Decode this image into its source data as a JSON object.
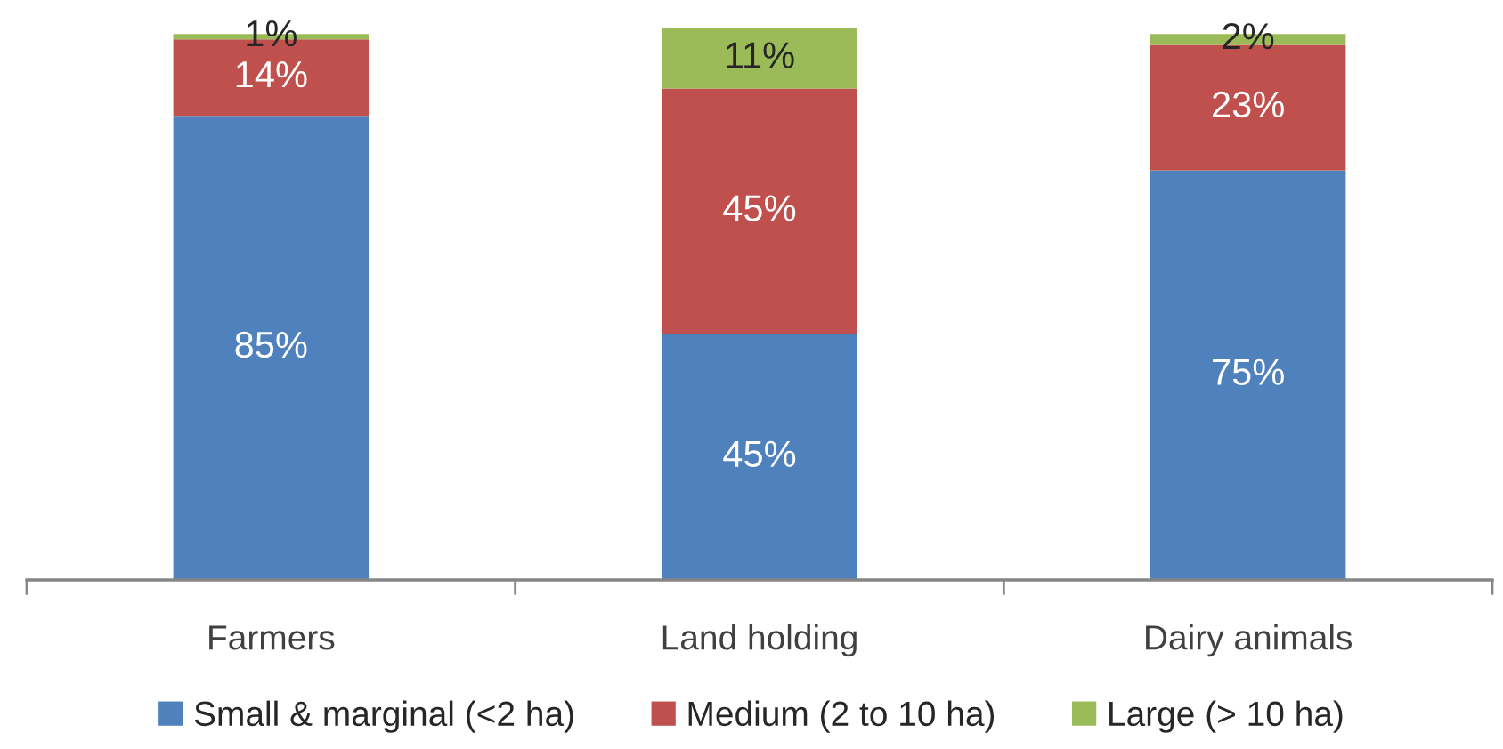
{
  "chart_data": {
    "type": "bar",
    "stacked": true,
    "legend": "bottom",
    "categories": [
      "Farmers",
      "Land holding",
      "Dairy animals"
    ],
    "series": [
      {
        "name": "Small & marginal (<2 ha)",
        "color": "#4f81bd",
        "values": [
          85,
          45,
          75
        ],
        "value_labels": [
          "85%",
          "45%",
          "75%"
        ]
      },
      {
        "name": "Medium (2 to 10 ha)",
        "color": "#c0504d",
        "values": [
          14,
          45,
          23
        ],
        "value_labels": [
          "14%",
          "45%",
          "23%"
        ]
      },
      {
        "name": "Large (> 10 ha)",
        "color": "#9bbb59",
        "values": [
          1,
          11,
          2
        ],
        "value_labels": [
          "1%",
          "11%",
          "2%"
        ]
      }
    ]
  }
}
